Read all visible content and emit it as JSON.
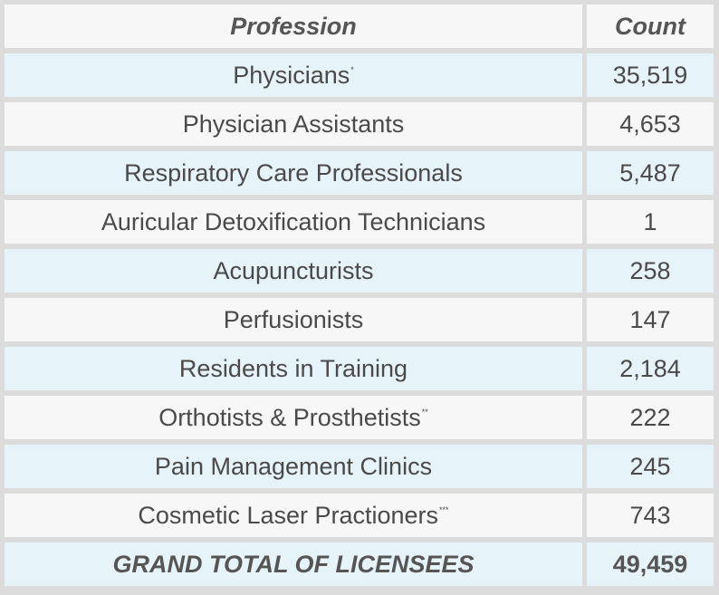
{
  "table": {
    "headers": {
      "profession": "Profession",
      "count": "Count"
    },
    "rows": [
      {
        "profession": "Physicians",
        "mark": "*",
        "count": "35,519"
      },
      {
        "profession": "Physician Assistants",
        "mark": "",
        "count": "4,653"
      },
      {
        "profession": "Respiratory Care Professionals",
        "mark": "",
        "count": "5,487"
      },
      {
        "profession": "Auricular Detoxification Technicians",
        "mark": "",
        "count": "1"
      },
      {
        "profession": "Acupuncturists",
        "mark": "",
        "count": "258"
      },
      {
        "profession": "Perfusionists",
        "mark": "",
        "count": "147"
      },
      {
        "profession": "Residents in Training",
        "mark": "",
        "count": "2,184"
      },
      {
        "profession": "Orthotists & Prosthetists",
        "mark": "**",
        "count": "222"
      },
      {
        "profession": "Pain Management Clinics",
        "mark": "",
        "count": "245"
      },
      {
        "profession": "Cosmetic Laser Practioners",
        "mark": "***",
        "count": "743"
      }
    ],
    "total": {
      "label": "GRAND TOTAL OF LICENSEES",
      "count": "49,459"
    }
  },
  "colors": {
    "border": "#dcdcdc",
    "row_white": "#f7f7f7",
    "row_blue": "#e6f3f9",
    "text": "#4a4a4a"
  }
}
